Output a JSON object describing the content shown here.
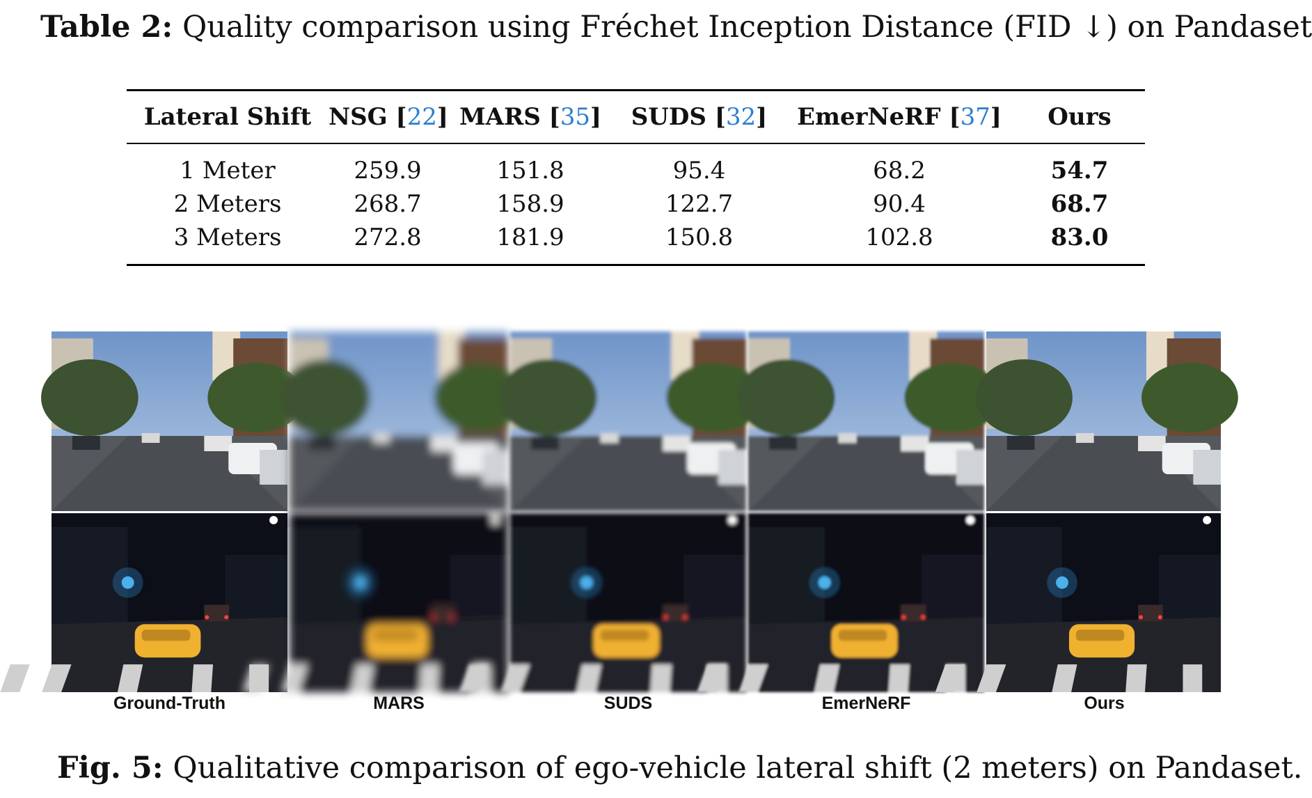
{
  "table": {
    "caption_label": "Table 2:",
    "caption_text": " Quality comparison using Fréchet Inception Distance (FID ↓) on Pandaset",
    "headers": [
      {
        "name": "Lateral Shift",
        "cite": ""
      },
      {
        "name": "NSG ",
        "cite": "22"
      },
      {
        "name": "MARS ",
        "cite": "35"
      },
      {
        "name": "SUDS ",
        "cite": "32"
      },
      {
        "name": "EmerNeRF ",
        "cite": "37"
      },
      {
        "name": "Ours",
        "cite": ""
      }
    ],
    "rows": [
      [
        "1 Meter",
        "259.9",
        "151.8",
        "95.4",
        "68.2",
        "54.7"
      ],
      [
        "2 Meters",
        "268.7",
        "158.9",
        "122.7",
        "90.4",
        "68.7"
      ],
      [
        "3 Meters",
        "272.8",
        "181.9",
        "150.8",
        "102.8",
        "83.0"
      ]
    ]
  },
  "figure": {
    "columns": [
      "Ground-Truth",
      "MARS",
      "SUDS",
      "EmerNeRF",
      "Ours"
    ],
    "rows": [
      "day-street-scene",
      "night-street-scene"
    ],
    "caption_label": "Fig. 5:",
    "caption_text": " Qualitative comparison of ego-vehicle lateral shift (2 meters) on Pandaset."
  }
}
